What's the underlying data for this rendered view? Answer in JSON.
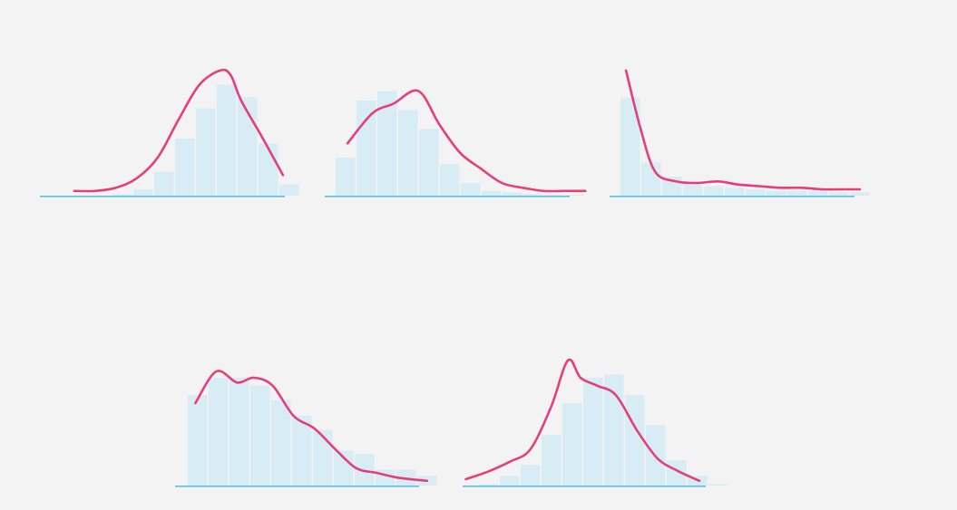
{
  "colors": {
    "bar": "#d5ebf4",
    "axis": "#5bbfe0",
    "curve": "#e53f7b",
    "background": "#f3f3f4"
  },
  "chart_data": [
    {
      "type": "bar",
      "values": [
        1,
        4,
        15,
        36,
        55,
        70,
        62,
        33,
        7
      ],
      "curve": [
        [
          -2.3,
          3
        ],
        [
          -1.3,
          3
        ],
        [
          -0.3,
          5
        ],
        [
          0.7,
          11
        ],
        [
          1.7,
          24
        ],
        [
          2.7,
          48
        ],
        [
          3.7,
          70
        ],
        [
          4.7,
          79
        ],
        [
          5.2,
          76
        ],
        [
          5.7,
          60
        ],
        [
          6.7,
          37
        ],
        [
          7.7,
          13
        ]
      ],
      "ylim": [
        0,
        80
      ]
    },
    {
      "type": "bar",
      "values": [
        24,
        60,
        66,
        54,
        42,
        20,
        8,
        3,
        2,
        1,
        0.5,
        0.5
      ],
      "curve": [
        [
          0.1,
          33
        ],
        [
          1.3,
          52
        ],
        [
          2.3,
          58
        ],
        [
          3.5,
          66
        ],
        [
          4.5,
          45
        ],
        [
          5.5,
          27
        ],
        [
          6.5,
          17
        ],
        [
          7.5,
          8
        ],
        [
          8.5,
          5
        ],
        [
          9.5,
          3
        ],
        [
          10.5,
          3
        ],
        [
          11.5,
          3
        ]
      ],
      "ylim": [
        0,
        80
      ]
    },
    {
      "type": "bar",
      "values": [
        62,
        21,
        12,
        7,
        6,
        5,
        4,
        3,
        3,
        3,
        2,
        2
      ],
      "curve": [
        [
          -0.2,
          79
        ],
        [
          0.5,
          42
        ],
        [
          1.2,
          15
        ],
        [
          2.2,
          9
        ],
        [
          3.2,
          8
        ],
        [
          4.2,
          9
        ],
        [
          5.2,
          7
        ],
        [
          6.2,
          6
        ],
        [
          7.2,
          5
        ],
        [
          8.2,
          5
        ],
        [
          9.2,
          4
        ],
        [
          10.2,
          4
        ],
        [
          11.0,
          4
        ]
      ],
      "ylim": [
        0,
        80
      ]
    },
    {
      "type": "bar",
      "values": [
        57,
        68,
        68,
        63,
        54,
        44,
        35,
        22,
        20,
        10,
        10,
        6
      ],
      "curve": [
        [
          -0.1,
          52
        ],
        [
          0.9,
          72
        ],
        [
          1.9,
          65
        ],
        [
          2.7,
          68
        ],
        [
          3.6,
          63
        ],
        [
          4.6,
          44
        ],
        [
          5.6,
          36
        ],
        [
          6.6,
          23
        ],
        [
          7.6,
          11
        ],
        [
          8.6,
          8
        ],
        [
          9.6,
          5
        ],
        [
          11.0,
          3
        ]
      ],
      "ylim": [
        0,
        80
      ]
    },
    {
      "type": "bar",
      "values": [
        1,
        6,
        13,
        32,
        52,
        68,
        70,
        57,
        38,
        16,
        6,
        1
      ],
      "curve": [
        [
          -1.1,
          4
        ],
        [
          0,
          9
        ],
        [
          1,
          15
        ],
        [
          2,
          23
        ],
        [
          3,
          50
        ],
        [
          3.8,
          79
        ],
        [
          4.4,
          68
        ],
        [
          5.2,
          63
        ],
        [
          6.1,
          57
        ],
        [
          7.1,
          35
        ],
        [
          8.1,
          17
        ],
        [
          9.1,
          9
        ],
        [
          10.1,
          3
        ]
      ],
      "ylim": [
        0,
        80
      ]
    }
  ]
}
